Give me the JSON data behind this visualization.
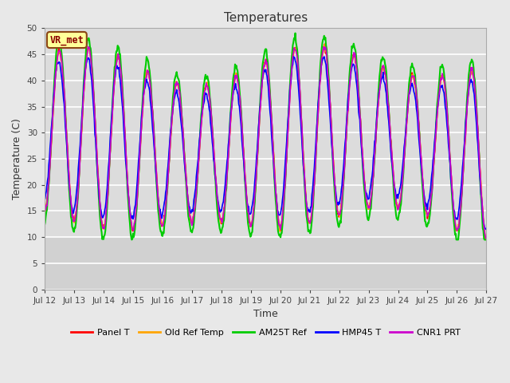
{
  "title": "Temperatures",
  "xlabel": "Time",
  "ylabel": "Temperature (C)",
  "ylim": [
    0,
    50
  ],
  "yticks": [
    0,
    5,
    10,
    15,
    20,
    25,
    30,
    35,
    40,
    45,
    50
  ],
  "annotation_text": "VR_met",
  "annotation_color": "#8B0000",
  "annotation_bg": "#FFFF99",
  "annotation_border": "#8B4513",
  "series_names": [
    "Panel T",
    "Old Ref Temp",
    "AM25T Ref",
    "HMP45 T",
    "CNR1 PRT"
  ],
  "series_colors": [
    "#FF0000",
    "#FFA500",
    "#00CC00",
    "#0000FF",
    "#CC00CC"
  ],
  "series_lw": [
    1.2,
    1.2,
    1.5,
    1.2,
    1.2
  ],
  "bg_color": "#E8E8E8",
  "plot_bg": "#DCDCDC",
  "grid_color": "#C8C8C8",
  "figsize": [
    6.4,
    4.8
  ],
  "dpi": 100
}
